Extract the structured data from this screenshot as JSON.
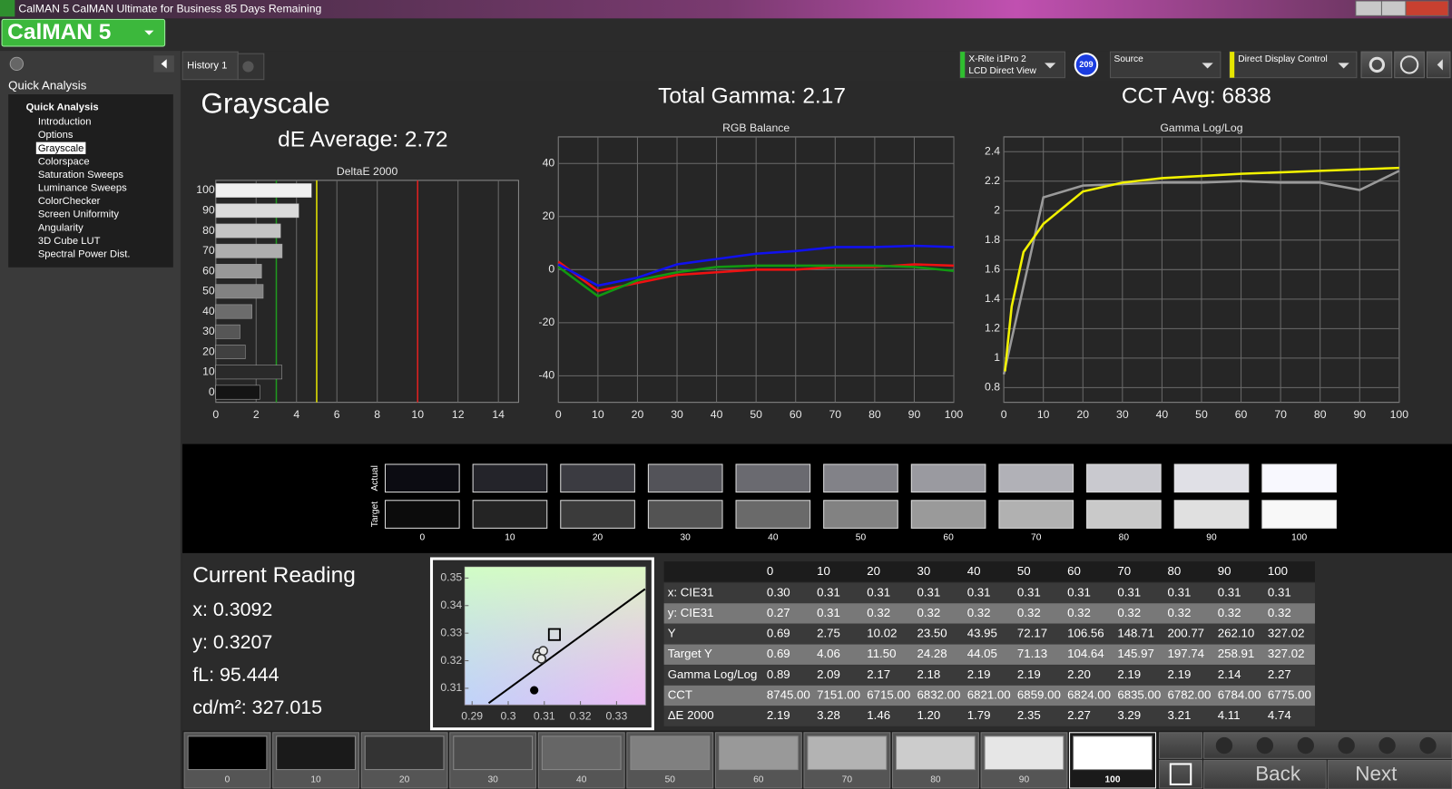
{
  "title_bar": "CalMAN 5 CalMAN Ultimate for Business 85 Days Remaining",
  "logo": "CalMAN 5",
  "sidebar": {
    "header": "Quick Analysis",
    "tree_root": "Quick Analysis",
    "items": [
      "Introduction",
      "Options",
      "Grayscale",
      "Colorspace",
      "Saturation Sweeps",
      "Luminance Sweeps",
      "ColorChecker",
      "Screen Uniformity",
      "Angularity",
      "3D Cube LUT",
      "Spectral Power Dist."
    ],
    "selected": 2
  },
  "tabs": [
    "History 1"
  ],
  "toolbar": {
    "meter": "X-Rite i1Pro 2",
    "meter_mode": "LCD Direct View",
    "badge": "209",
    "source": "Source",
    "display": "Direct Display Control"
  },
  "summary": {
    "page_title": "Grayscale",
    "de_average": "dE Average: 2.72",
    "total_gamma": "Total Gamma: 2.17",
    "cct_avg": "CCT Avg: 6838"
  },
  "chart_data": [
    {
      "type": "hbar",
      "title": "DeltaE 2000",
      "categories": [
        "0",
        "10",
        "20",
        "30",
        "40",
        "50",
        "60",
        "70",
        "80",
        "90",
        "100"
      ],
      "values": [
        2.19,
        3.28,
        1.46,
        1.2,
        1.79,
        2.35,
        2.27,
        3.29,
        3.21,
        4.11,
        4.74
      ],
      "xlim": [
        0,
        15
      ],
      "xticks": [
        0,
        2,
        4,
        6,
        8,
        10,
        12,
        14
      ],
      "grid": true,
      "thresholds": [
        {
          "value": 3,
          "color": "#1f9a1f"
        },
        {
          "value": 5,
          "color": "#e6e600"
        },
        {
          "value": 10,
          "color": "#e02020"
        }
      ]
    },
    {
      "type": "line",
      "title": "RGB Balance",
      "x": [
        0,
        10,
        20,
        30,
        40,
        50,
        60,
        70,
        80,
        90,
        100
      ],
      "series": [
        {
          "color": "#ee1111",
          "values": [
            3,
            -8,
            -5,
            -2,
            -1,
            0,
            0,
            1,
            1,
            2,
            1.5
          ]
        },
        {
          "color": "#119911",
          "values": [
            1,
            -10,
            -4,
            -1,
            1,
            1.5,
            1.5,
            1.5,
            1.5,
            1,
            -0.5
          ]
        },
        {
          "color": "#1111ee",
          "values": [
            2,
            -6,
            -3,
            2,
            4,
            6,
            7,
            8.5,
            8.5,
            9,
            8.5
          ]
        }
      ],
      "xlim": [
        0,
        100
      ],
      "xticks": [
        0,
        10,
        20,
        30,
        40,
        50,
        60,
        70,
        80,
        90,
        100
      ],
      "ylim": [
        -50,
        50
      ],
      "yticks": [
        -40,
        -20,
        0,
        20,
        40
      ],
      "grid": true
    },
    {
      "type": "line",
      "title": "Gamma Log/Log",
      "series": [
        {
          "color": "#9a9a9a",
          "x": [
            0,
            10,
            20,
            30,
            40,
            50,
            60,
            70,
            80,
            90,
            100
          ],
          "values": [
            0.89,
            2.09,
            2.17,
            2.18,
            2.19,
            2.19,
            2.2,
            2.19,
            2.19,
            2.14,
            2.27
          ]
        },
        {
          "color": "#f2f200",
          "x": [
            0.3,
            1,
            2,
            5,
            10,
            20,
            30,
            40,
            60,
            80,
            100
          ],
          "values": [
            0.91,
            1.1,
            1.35,
            1.72,
            1.91,
            2.13,
            2.19,
            2.22,
            2.25,
            2.27,
            2.29
          ]
        }
      ],
      "xlim": [
        0,
        100
      ],
      "xticks": [
        0,
        10,
        20,
        30,
        40,
        50,
        60,
        70,
        80,
        90,
        100
      ],
      "ylim": [
        0.7,
        2.5
      ],
      "yticks": [
        0.8,
        1,
        1.2,
        1.4,
        1.6,
        1.8,
        2,
        2.2,
        2.4
      ],
      "grid": true
    },
    {
      "type": "scatter",
      "series": [
        {
          "kind": "line",
          "color": "#000000",
          "x": [
            0.2946,
            0.3379
          ],
          "values": [
            0.3046,
            0.346
          ]
        },
        {
          "marker": "square",
          "color": "#000000",
          "x": [
            0.3128
          ],
          "values": [
            0.3295
          ]
        },
        {
          "marker": "dot",
          "color": "#000000",
          "x": [
            0.3072
          ],
          "values": [
            0.3093
          ]
        },
        {
          "marker": "circle",
          "color": "#333333",
          "x": [
            0.3085,
            0.3097,
            0.308,
            0.3092
          ],
          "values": [
            0.3228,
            0.3236,
            0.3215,
            0.3207
          ]
        }
      ],
      "xlim": [
        0.288,
        0.338
      ],
      "xticks": [
        0.29,
        0.3,
        0.31,
        0.32,
        0.33
      ],
      "ylim": [
        0.304,
        0.354
      ],
      "yticks": [
        0.31,
        0.32,
        0.33,
        0.34,
        0.35
      ]
    }
  ],
  "swatches": {
    "row_labels": [
      "Actual",
      "Target"
    ],
    "levels": [
      "0",
      "10",
      "20",
      "30",
      "40",
      "50",
      "60",
      "70",
      "80",
      "90",
      "100"
    ]
  },
  "current_reading": {
    "title": "Current Reading",
    "lines": [
      "x: 0.3092",
      "y: 0.3207",
      "fL: 95.444",
      "cd/m²: 327.015"
    ]
  },
  "table": {
    "columns": [
      "0",
      "10",
      "20",
      "30",
      "40",
      "50",
      "60",
      "70",
      "80",
      "90",
      "100"
    ],
    "rows": [
      {
        "label": "x: CIE31",
        "cells": [
          "0.30",
          "0.31",
          "0.31",
          "0.31",
          "0.31",
          "0.31",
          "0.31",
          "0.31",
          "0.31",
          "0.31",
          "0.31"
        ]
      },
      {
        "label": "y: CIE31",
        "cells": [
          "0.27",
          "0.31",
          "0.32",
          "0.32",
          "0.32",
          "0.32",
          "0.32",
          "0.32",
          "0.32",
          "0.32",
          "0.32"
        ]
      },
      {
        "label": "Y",
        "cells": [
          "0.69",
          "2.75",
          "10.02",
          "23.50",
          "43.95",
          "72.17",
          "106.56",
          "148.71",
          "200.77",
          "262.10",
          "327.02"
        ]
      },
      {
        "label": "Target Y",
        "cells": [
          "0.69",
          "4.06",
          "11.50",
          "24.28",
          "44.05",
          "71.13",
          "104.64",
          "145.97",
          "197.74",
          "258.91",
          "327.02"
        ]
      },
      {
        "label": "Gamma Log/Log",
        "cells": [
          "0.89",
          "2.09",
          "2.17",
          "2.18",
          "2.19",
          "2.19",
          "2.20",
          "2.19",
          "2.19",
          "2.14",
          "2.27"
        ]
      },
      {
        "label": "CCT",
        "cells": [
          "8745.00",
          "7151.00",
          "6715.00",
          "6832.00",
          "6821.00",
          "6859.00",
          "6824.00",
          "6835.00",
          "6782.00",
          "6784.00",
          "6775.00"
        ]
      },
      {
        "label": "ΔE 2000",
        "cells": [
          "2.19",
          "3.28",
          "1.46",
          "1.20",
          "1.79",
          "2.35",
          "2.27",
          "3.29",
          "3.21",
          "4.11",
          "4.74"
        ]
      }
    ]
  },
  "patch_bar": {
    "levels": [
      "0",
      "10",
      "20",
      "30",
      "40",
      "50",
      "60",
      "70",
      "80",
      "90",
      "100"
    ],
    "selected": 10
  },
  "nav": {
    "back": "Back",
    "next": "Next"
  }
}
